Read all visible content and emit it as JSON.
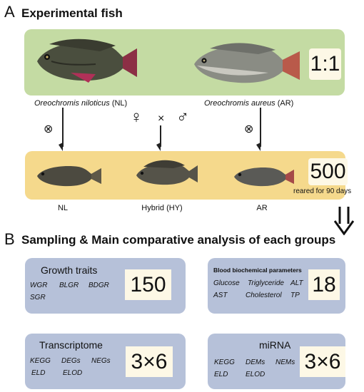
{
  "sectionA": {
    "letter": "A",
    "title": "Experimental fish"
  },
  "parents": {
    "nl_label_italic": "Oreochromis niloticus",
    "nl_label_abbr": "(NL)",
    "ar_label_italic": "Oreochromis aureus",
    "ar_label_abbr": "(AR)",
    "ratio": "1:1"
  },
  "cross": {
    "self_symbol_left": "⊗",
    "female": "♀",
    "times": "×",
    "male": "♂",
    "self_symbol_right": "⊗"
  },
  "offspring": {
    "count": "500",
    "note": "reared for 90 days",
    "labels": [
      "NL",
      "Hybrid (HY)",
      "AR"
    ]
  },
  "sectionB": {
    "letter": "B",
    "title": "Sampling & Main comparative analysis of each groups"
  },
  "cards": {
    "growth": {
      "title": "Growth traits",
      "items": [
        "WGR",
        "BLGR",
        "BDGR",
        "SGR"
      ],
      "number": "150"
    },
    "blood": {
      "title": "Blood biochemical parameters",
      "items": [
        "Glucose",
        "Triglyceride",
        "ALT",
        "AST",
        "Cholesterol",
        "TP"
      ],
      "number": "18"
    },
    "transcriptome": {
      "title": "Transcriptome",
      "items": [
        "KEGG",
        "DEGs",
        "NEGs",
        "ELD",
        "ELOD"
      ],
      "number": "3×6"
    },
    "mirna": {
      "title": "miRNA",
      "items": [
        "KEGG",
        "DEMs",
        "NEMs",
        "ELD",
        "ELOD"
      ],
      "number": "3×6"
    }
  },
  "colors": {
    "green_band": "#c4dba3",
    "yellow_band": "#f5d98c",
    "card": "#b6c1d9",
    "box": "#fdf8e6"
  }
}
